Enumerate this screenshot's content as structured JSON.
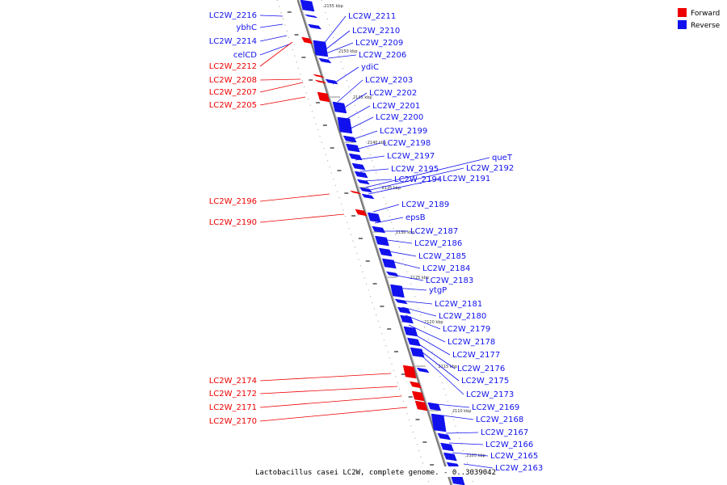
{
  "colors": {
    "forward": "#ee0000",
    "reverse": "#1111ee",
    "backbone": "#888888"
  },
  "legend": [
    {
      "label": "Forward",
      "color": "#ee0000"
    },
    {
      "label": "Reverse",
      "color": "#1111ee"
    }
  ],
  "caption": "Lactobacillus casei LC2W, complete genome. - 0..3039042",
  "ticks": [
    "2155 kbp",
    "2150 kbp",
    "2145 kbp",
    "2140 kbp",
    "2135 kbp",
    "2130 kbp",
    "2125 kbp",
    "2120 kbp",
    "2115 kbp",
    "2110 kbp",
    "2105 kbp"
  ],
  "labels_left": [
    {
      "text": "LC2W_2216",
      "strand": "reverse"
    },
    {
      "text": "ybhC",
      "strand": "reverse"
    },
    {
      "text": "LC2W_2214",
      "strand": "reverse"
    },
    {
      "text": "celCD",
      "strand": "reverse"
    },
    {
      "text": "LC2W_2212",
      "strand": "forward"
    },
    {
      "text": "LC2W_2208",
      "strand": "forward"
    },
    {
      "text": "LC2W_2207",
      "strand": "forward"
    },
    {
      "text": "LC2W_2205",
      "strand": "forward"
    },
    {
      "text": "LC2W_2196",
      "strand": "forward"
    },
    {
      "text": "LC2W_2190",
      "strand": "forward"
    },
    {
      "text": "LC2W_2174",
      "strand": "forward"
    },
    {
      "text": "LC2W_2172",
      "strand": "forward"
    },
    {
      "text": "LC2W_2171",
      "strand": "forward"
    },
    {
      "text": "LC2W_2170",
      "strand": "forward"
    }
  ],
  "labels_right": [
    "LC2W_2211",
    "LC2W_2210",
    "LC2W_2209",
    "LC2W_2206",
    "ydiC",
    "LC2W_2203",
    "LC2W_2202",
    "LC2W_2201",
    "LC2W_2200",
    "LC2W_2199",
    "LC2W_2198",
    "LC2W_2197",
    "LC2W_2195",
    "LC2W_2194",
    "queT",
    "LC2W_2192",
    "LC2W_2191",
    "LC2W_2189",
    "epsB",
    "LC2W_2187",
    "LC2W_2186",
    "LC2W_2185",
    "LC2W_2184",
    "LC2W_2183",
    "ytgP",
    "LC2W_2181",
    "LC2W_2180",
    "LC2W_2179",
    "LC2W_2178",
    "LC2W_2177",
    "LC2W_2176",
    "LC2W_2175",
    "LC2W_2173",
    "LC2W_2169",
    "LC2W_2168",
    "LC2W_2167",
    "LC2W_2166",
    "LC2W_2165",
    "LC2W_2163"
  ]
}
